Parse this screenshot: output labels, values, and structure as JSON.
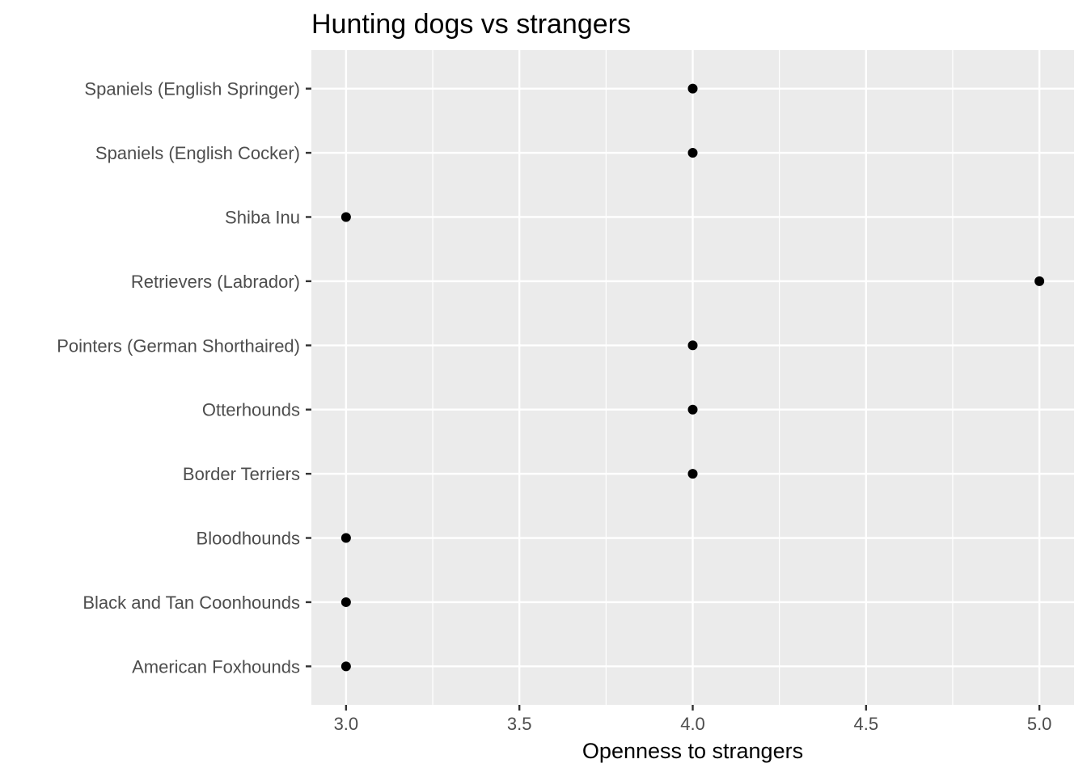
{
  "chart_data": {
    "type": "scatter",
    "title": "Hunting dogs vs strangers",
    "xlabel": "Openness to strangers",
    "ylabel": "",
    "xlim": [
      2.9,
      5.1
    ],
    "x_ticks": [
      "3.0",
      "3.5",
      "4.0",
      "4.5",
      "5.0"
    ],
    "grid": true,
    "categories": [
      "American Foxhounds",
      "Black and Tan Coonhounds",
      "Bloodhounds",
      "Border Terriers",
      "Otterhounds",
      "Pointers (German Shorthaired)",
      "Retrievers (Labrador)",
      "Shiba Inu",
      "Spaniels (English Cocker)",
      "Spaniels (English Springer)"
    ],
    "values": [
      3,
      3,
      3,
      4,
      4,
      4,
      5,
      3,
      4,
      4
    ],
    "colors": {
      "panel": "#ebebeb",
      "grid": "#ffffff",
      "point": "#000000",
      "tick": "#333333"
    }
  }
}
